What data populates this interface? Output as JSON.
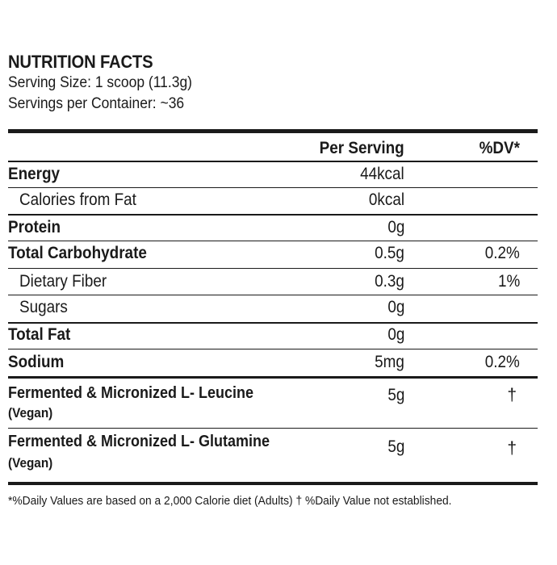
{
  "header": {
    "title": "NUTRITION FACTS",
    "serving_size": "Serving Size: 1 scoop (11.3g)",
    "servings_per_container": "Servings per Container: ~36"
  },
  "columns": {
    "per_serving": "Per Serving",
    "dv": "%DV*"
  },
  "rows": [
    {
      "name": "Energy",
      "per": "44kcal",
      "dv": ""
    },
    {
      "name": "Calories from Fat",
      "per": "0kcal",
      "dv": ""
    },
    {
      "name": "Protein",
      "per": "0g",
      "dv": ""
    },
    {
      "name": "Total Carbohydrate",
      "per": "0.5g",
      "dv": "0.2%"
    },
    {
      "name": "Dietary Fiber",
      "per": "0.3g",
      "dv": "1%"
    },
    {
      "name": "Sugars",
      "per": "0g",
      "dv": ""
    },
    {
      "name": "Total Fat",
      "per": "0g",
      "dv": ""
    },
    {
      "name": "Sodium",
      "per": "5mg",
      "dv": "0.2%"
    },
    {
      "name": "Fermented & Micronized L- Leucine",
      "name2": "(Vegan)",
      "per": "5g",
      "dv": "†"
    },
    {
      "name": "Fermented & Micronized L- Glutamine",
      "name2": "(Vegan)",
      "per": "5g",
      "dv": "†"
    }
  ],
  "footnote": "*%Daily Values are based on a 2,000 Calorie diet (Adults) † %Daily Value not established."
}
